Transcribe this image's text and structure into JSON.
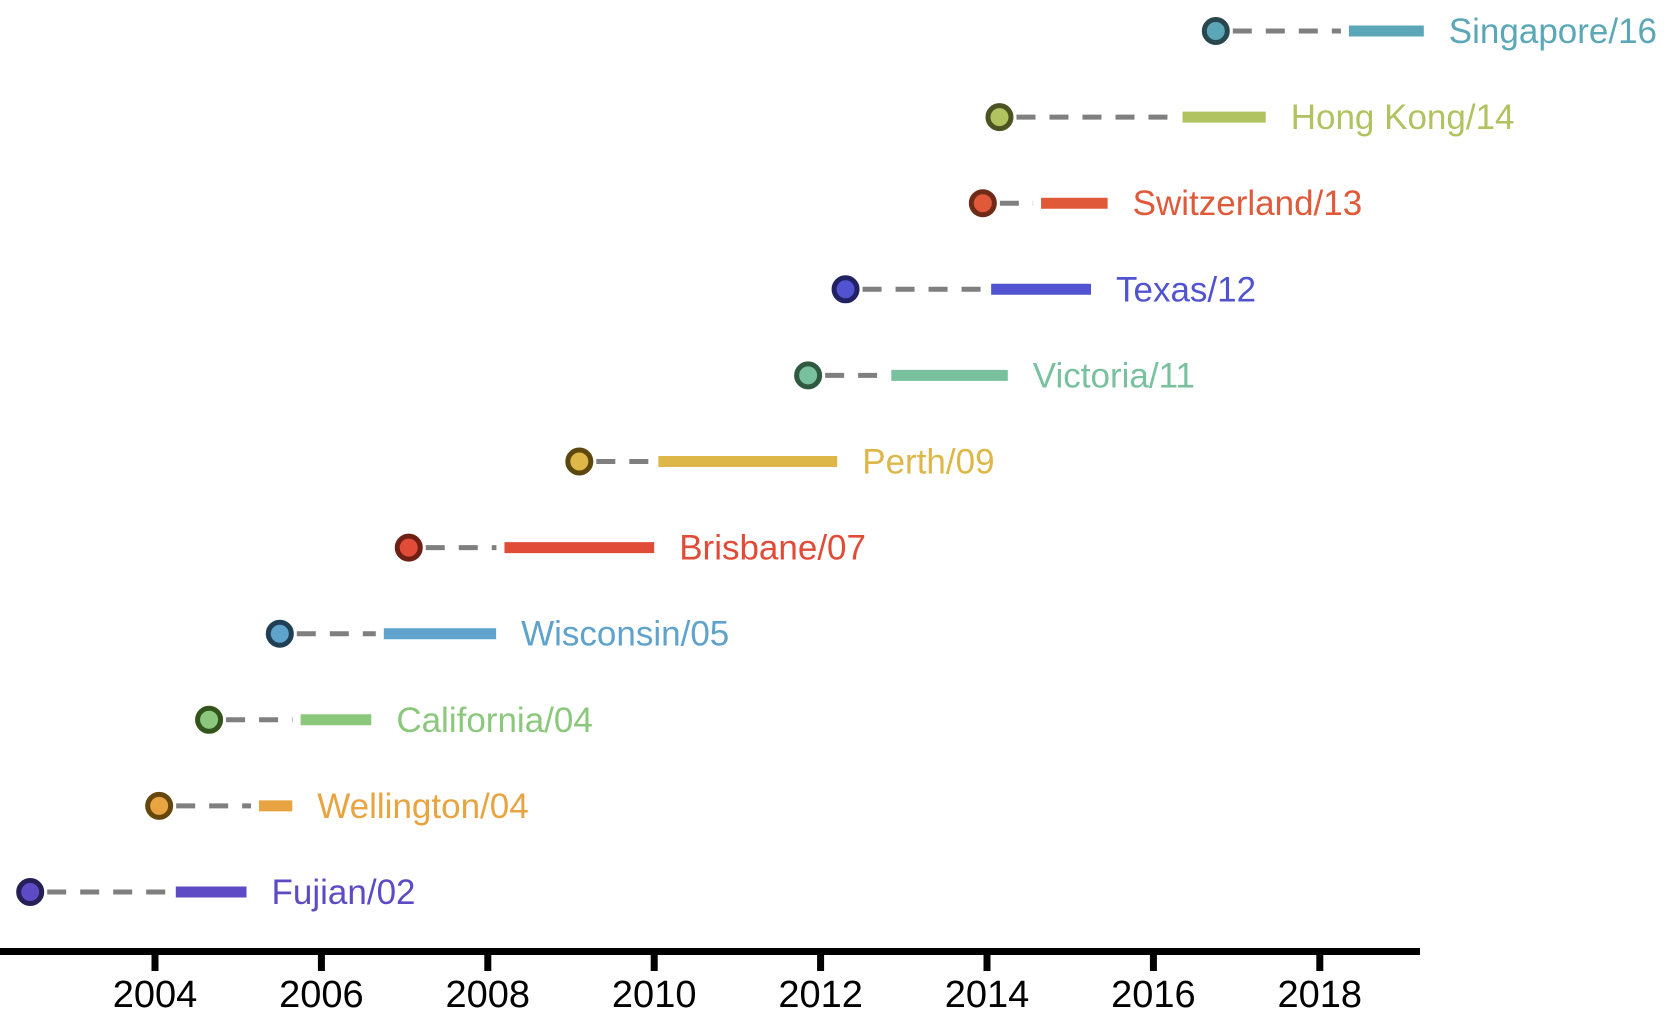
{
  "chart_data": {
    "type": "timeline",
    "title": "",
    "xlabel": "",
    "ylabel": "",
    "description": "Influenza strain timeline: dot marks strain emergence, dashed connector leads to solid bar marking period of use",
    "x_ticks": [
      2004,
      2006,
      2008,
      2010,
      2012,
      2014,
      2016,
      2018
    ],
    "x_range": [
      2002.1,
      2019.2
    ],
    "grid": false,
    "legend": "none",
    "axis_color": "#000000",
    "connector_color": "#7f7f7f",
    "series": [
      {
        "label": "Singapore/16",
        "dot_year": 2016.75,
        "bar_start": 2018.35,
        "bar_end": 2019.25,
        "color": "#5ba7b7",
        "edge_color": "#2a4750"
      },
      {
        "label": "Hong Kong/14",
        "dot_year": 2014.15,
        "bar_start": 2016.35,
        "bar_end": 2017.35,
        "color": "#b1c260",
        "edge_color": "#4c5222"
      },
      {
        "label": "Switzerland/13",
        "dot_year": 2013.95,
        "bar_start": 2014.65,
        "bar_end": 2015.45,
        "color": "#e05a3a",
        "edge_color": "#702a18"
      },
      {
        "label": "Texas/12",
        "dot_year": 2012.3,
        "bar_start": 2014.05,
        "bar_end": 2015.25,
        "color": "#5253d0",
        "edge_color": "#212164"
      },
      {
        "label": "Victoria/11",
        "dot_year": 2011.85,
        "bar_start": 2012.85,
        "bar_end": 2014.25,
        "color": "#79c19e",
        "edge_color": "#2f5a40"
      },
      {
        "label": "Perth/09",
        "dot_year": 2009.1,
        "bar_start": 2010.05,
        "bar_end": 2012.2,
        "color": "#ddb748",
        "edge_color": "#5c480f"
      },
      {
        "label": "Brisbane/07",
        "dot_year": 2007.05,
        "bar_start": 2008.2,
        "bar_end": 2010.0,
        "color": "#e14c39",
        "edge_color": "#6d2013"
      },
      {
        "label": "Wisconsin/05",
        "dot_year": 2005.5,
        "bar_start": 2006.75,
        "bar_end": 2008.1,
        "color": "#5fa2cb",
        "edge_color": "#203f55"
      },
      {
        "label": "California/04",
        "dot_year": 2004.65,
        "bar_start": 2005.75,
        "bar_end": 2006.6,
        "color": "#8bc87c",
        "edge_color": "#33541c"
      },
      {
        "label": "Wellington/04",
        "dot_year": 2004.05,
        "bar_start": 2005.25,
        "bar_end": 2005.65,
        "color": "#e8a440",
        "edge_color": "#65470e"
      },
      {
        "label": "Fujian/02",
        "dot_year": 2002.5,
        "bar_start": 2004.25,
        "bar_end": 2005.1,
        "color": "#5d4bc5",
        "edge_color": "#262058"
      }
    ]
  }
}
